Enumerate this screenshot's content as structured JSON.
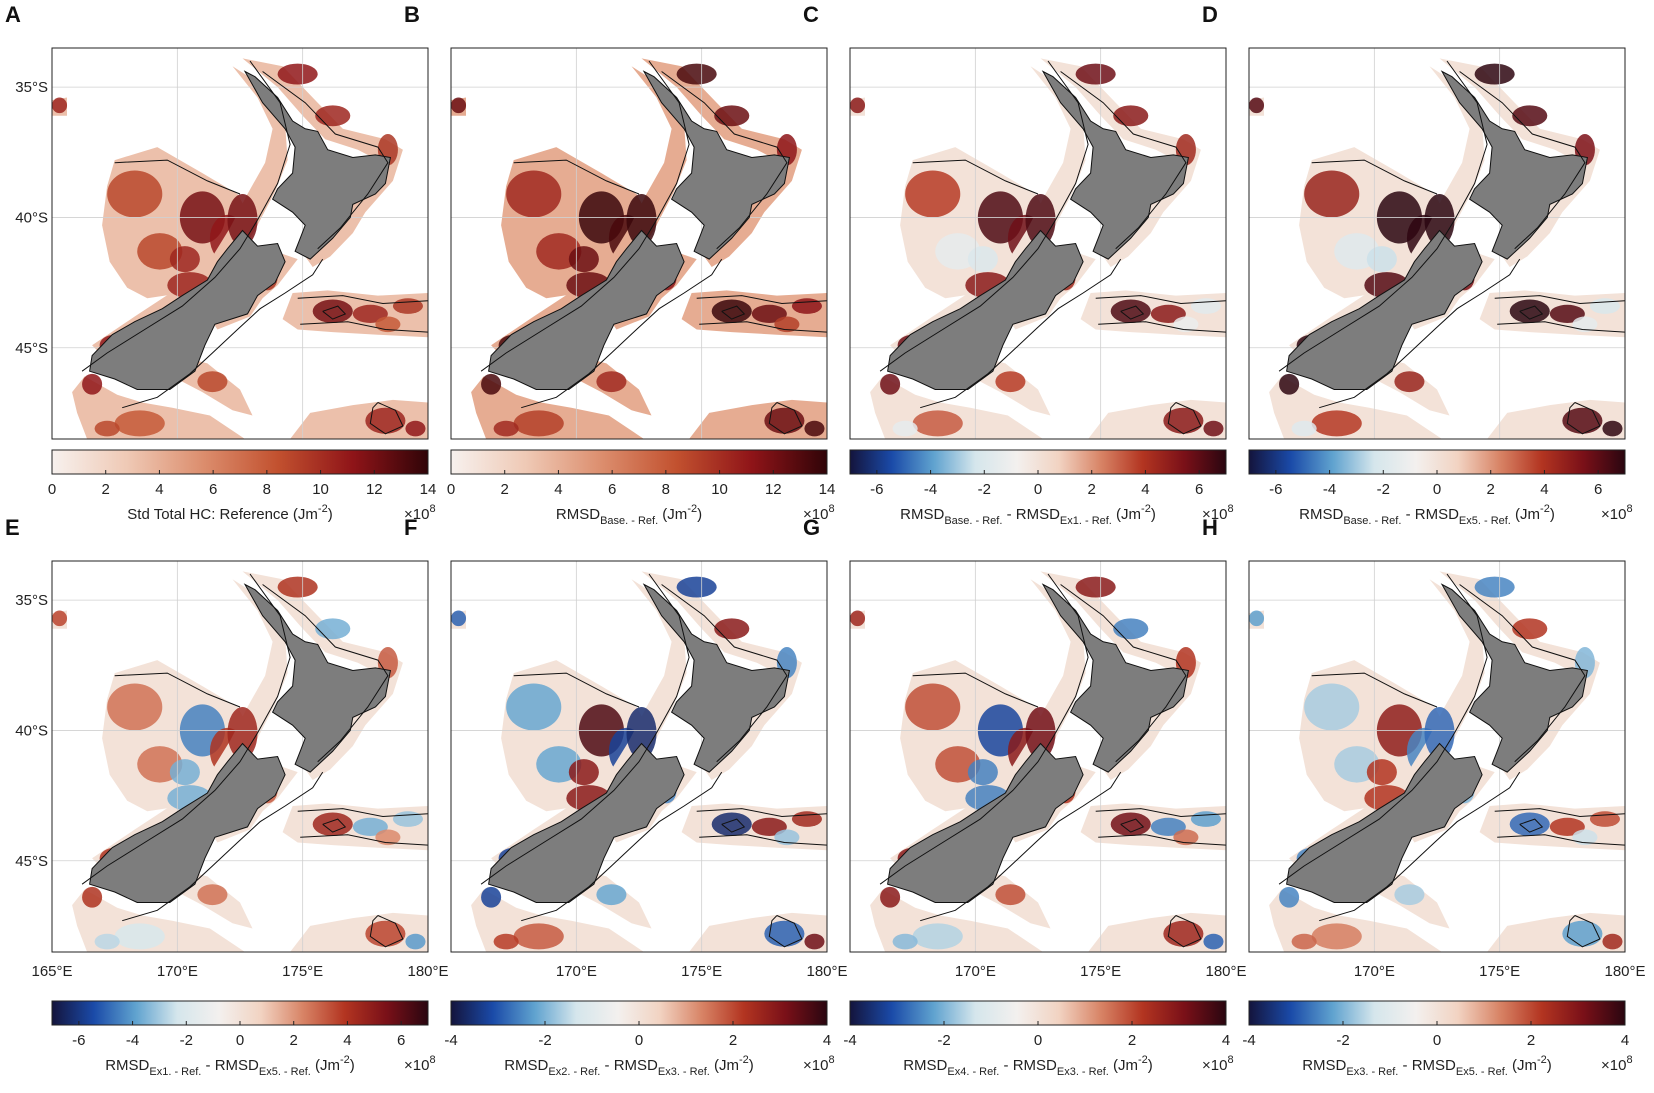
{
  "colors": {
    "land": "#7d7d7d",
    "diverging": [
      "#14143c",
      "#1a4aa8",
      "#5fa2cf",
      "#d5e6ec",
      "#f3f0ee",
      "#f2d3c2",
      "#d88466",
      "#b33521",
      "#7a1018",
      "#2a0610"
    ],
    "sequential": [
      "#f7f1ee",
      "#efc9b5",
      "#dc8e6e",
      "#c2512f",
      "#8f1418",
      "#300408"
    ]
  },
  "chart_data": {
    "type": "heatmap",
    "description_axis": {
      "x_ticks": [
        "165°E",
        "170°E",
        "175°E",
        "180°E"
      ],
      "y_ticks": [
        "35°S",
        "40°S",
        "45°S"
      ],
      "x_range": [
        165,
        180
      ],
      "y_range": [
        -48.5,
        -33.5
      ]
    },
    "panels": [
      {
        "id": "A",
        "colormap": "sequential",
        "clim": [
          0,
          14
        ],
        "ticks": [
          "0",
          "2",
          "4",
          "6",
          "8",
          "10",
          "12",
          "14"
        ],
        "label": [
          "Std Total HC: Reference (Jm",
          "-2",
          ")"
        ],
        "exponent": "×10",
        "exp_power": "8",
        "pattern": "mean",
        "scale": 0.55
      },
      {
        "id": "B",
        "colormap": "sequential",
        "clim": [
          0,
          14
        ],
        "ticks": [
          "0",
          "2",
          "4",
          "6",
          "8",
          "10",
          "12",
          "14"
        ],
        "label": [
          "RMSD",
          "Base. - Ref.",
          " (Jm",
          "-2",
          ")"
        ],
        "exponent": "×10",
        "exp_power": "8",
        "pattern": "mean",
        "scale": 0.72
      },
      {
        "id": "C",
        "colormap": "diverging",
        "clim": [
          -7,
          7
        ],
        "ticks": [
          "-6",
          "-4",
          "-2",
          "0",
          "2",
          "4",
          "6"
        ],
        "label": [
          "RMSD",
          "Base. - Ref.",
          " - RMSD",
          "Ex1. - Ref.",
          " (Jm",
          "-2",
          ")"
        ],
        "exponent": "×10",
        "exp_power": "8",
        "pattern": "diff",
        "scale": 0.45
      },
      {
        "id": "D",
        "colormap": "diverging",
        "clim": [
          -7,
          7
        ],
        "ticks": [
          "-6",
          "-4",
          "-2",
          "0",
          "2",
          "4",
          "6"
        ],
        "label": [
          "RMSD",
          "Base. - Ref.",
          " - RMSD",
          "Ex5. - Ref.",
          " (Jm",
          "-2",
          ")"
        ],
        "exponent": "×10",
        "exp_power": "8",
        "pattern": "diff",
        "scale": 0.55
      },
      {
        "id": "E",
        "colormap": "diverging",
        "clim": [
          -7,
          7
        ],
        "ticks": [
          "-6",
          "-4",
          "-2",
          "0",
          "2",
          "4",
          "6"
        ],
        "label": [
          "RMSD",
          "Ex1. - Ref.",
          " - RMSD",
          "Ex5. - Ref.",
          " (Jm",
          "-2",
          ")"
        ],
        "exponent": "×10",
        "exp_power": "8",
        "pattern": "mixed",
        "scale": 0.32
      },
      {
        "id": "F",
        "colormap": "diverging",
        "clim": [
          -4,
          4
        ],
        "ticks": [
          "-4",
          "-2",
          "0",
          "2",
          "4"
        ],
        "label": [
          "RMSD",
          "Ex2. - Ref.",
          " - RMSD",
          "Ex3. - Ref.",
          " (Jm",
          "-2",
          ")"
        ],
        "exponent": "×10",
        "exp_power": "8",
        "pattern": "mixed",
        "scale": 0.45
      },
      {
        "id": "G",
        "colormap": "diverging",
        "clim": [
          -4,
          4
        ],
        "ticks": [
          "-4",
          "-2",
          "0",
          "2",
          "4"
        ],
        "label": [
          "RMSD",
          "Ex4. - Ref.",
          " - RMSD",
          "Ex3. - Ref.",
          " (Jm",
          "-2",
          ")"
        ],
        "exponent": "×10",
        "exp_power": "8",
        "pattern": "mixed",
        "scale": 0.4
      },
      {
        "id": "H",
        "colormap": "diverging",
        "clim": [
          -4,
          4
        ],
        "ticks": [
          "-4",
          "-2",
          "0",
          "2",
          "4"
        ],
        "label": [
          "RMSD",
          "Ex3. - Ref.",
          " - RMSD",
          "Ex5. - Ref.",
          " (Jm",
          "-2",
          ")"
        ],
        "exponent": "×10",
        "exp_power": "8",
        "pattern": "mixed",
        "scale": 0.35
      }
    ]
  }
}
